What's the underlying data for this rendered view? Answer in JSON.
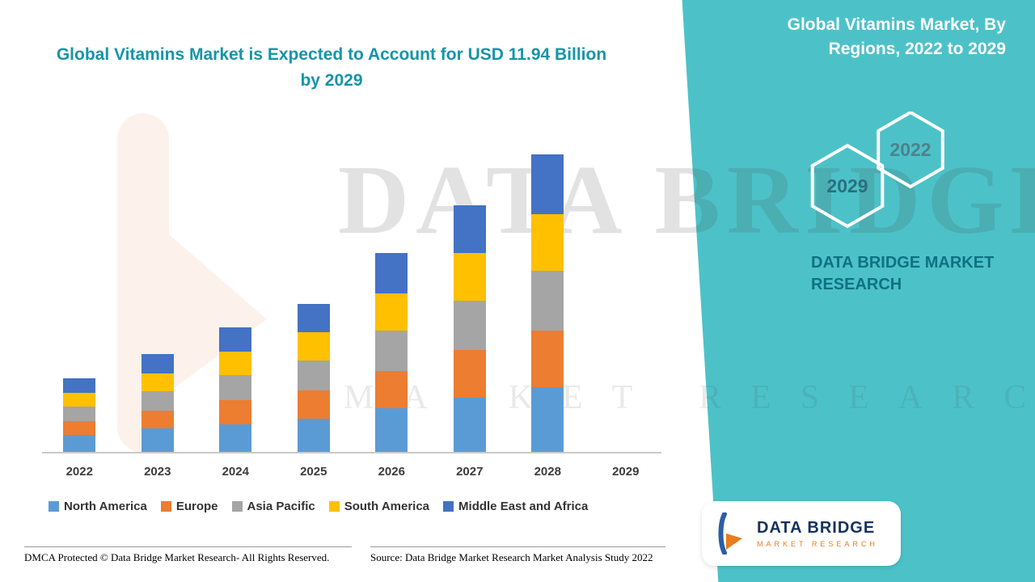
{
  "titles": {
    "left_title": "Global Vitamins Market is Expected to Account for USD 11.94 Billion by 2029",
    "right_title": "Global Vitamins Market, By Regions, 2022 to 2029",
    "panel_brand": "DATA BRIDGE MARKET RESEARCH"
  },
  "hexagons": {
    "front_year": "2029",
    "back_year": "2022"
  },
  "watermark": {
    "line1": "DATA BRIDGE",
    "line2": "MARKET RESEARCH"
  },
  "footer": {
    "dmca": "DMCA Protected © Data Bridge Market Research- All Rights Reserved.",
    "source": "Source: Data Bridge Market Research Market Analysis Study 2022"
  },
  "logo_card": {
    "brand": "DATA BRIDGE",
    "sub": "MARKET RESEARCH"
  },
  "colors": {
    "panel_teal": "#4CC2C8",
    "title_teal": "#1794A8",
    "panel_brand_text": "#0E7282",
    "logo_navy": "#16325C",
    "logo_orange": "#E87C1E"
  },
  "chart_data": {
    "type": "bar",
    "stacked": true,
    "title": "Global Vitamins Market, By Regions, 2022 to 2029",
    "xlabel": "",
    "ylabel": "",
    "units": "relative market size index (2028 total = 100); y-axis unlabeled in source image",
    "grid": false,
    "legend_position": "bottom",
    "note": "No bar is drawn for 2029 in the source image",
    "categories": [
      "2022",
      "2023",
      "2024",
      "2025",
      "2026",
      "2027",
      "2028",
      "2029"
    ],
    "totals": [
      25,
      33,
      42,
      50,
      67,
      83,
      100,
      0
    ],
    "series": [
      {
        "name": "North America",
        "color": "#5B9BD5",
        "values": [
          6,
          8,
          9.5,
          11.5,
          15,
          18.5,
          22,
          0
        ]
      },
      {
        "name": "Europe",
        "color": "#ED7D31",
        "values": [
          4.5,
          6,
          8,
          9.5,
          12.5,
          16,
          19,
          0
        ]
      },
      {
        "name": "Asia Pacific",
        "color": "#A5A5A5",
        "values": [
          5,
          6.5,
          8.5,
          10,
          13.5,
          16.5,
          20,
          0
        ]
      },
      {
        "name": "South America",
        "color": "#FFC000",
        "values": [
          4.5,
          6,
          8,
          9.5,
          12.5,
          16,
          19,
          0
        ]
      },
      {
        "name": "Middle East and Africa",
        "color": "#4472C4",
        "values": [
          5,
          6.5,
          8,
          9.5,
          13.5,
          16,
          20,
          0
        ]
      }
    ]
  }
}
